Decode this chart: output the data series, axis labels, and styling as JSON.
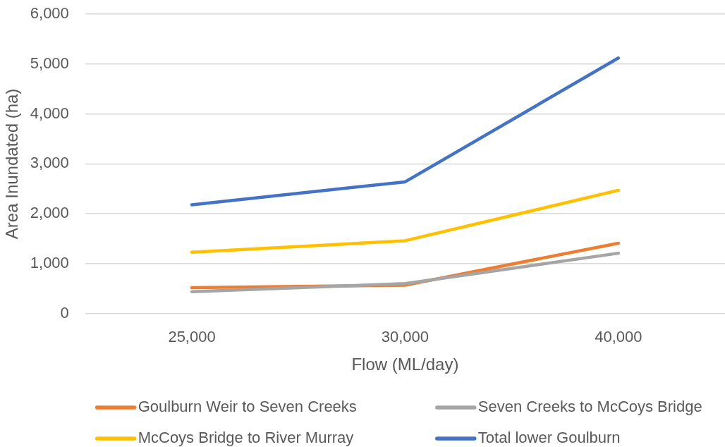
{
  "chart_data": {
    "type": "line",
    "xlabel": "Flow (ML/day)",
    "ylabel": "Area Inundated (ha)",
    "categories": [
      "25,000",
      "30,000",
      "40,000"
    ],
    "series": [
      {
        "name": "Goulburn Weir to Seven Creeks",
        "color": "#ed7d31",
        "values": [
          520,
          570,
          1410
        ]
      },
      {
        "name": "Seven Creeks to McCoys Bridge",
        "color": "#a5a5a5",
        "values": [
          440,
          600,
          1210
        ]
      },
      {
        "name": "McCoys Bridge to River Murray",
        "color": "#ffc000",
        "values": [
          1230,
          1460,
          2470
        ]
      },
      {
        "name": "Total lower Goulburn",
        "color": "#4472c4",
        "values": [
          2180,
          2640,
          5120
        ]
      }
    ],
    "ylim": [
      0,
      6000
    ],
    "yticks": [
      0,
      {
        "value": 1000,
        "label": "1,000"
      },
      {
        "value": 2000,
        "label": "2,000"
      },
      {
        "value": 3000,
        "label": "3,000"
      },
      {
        "value": 4000,
        "label": "4,000"
      },
      {
        "value": 5000,
        "label": "5,000"
      },
      {
        "value": 6000,
        "label": "6,000"
      }
    ],
    "grid": "y",
    "legend": "bottom",
    "marker": "none",
    "line_style": "solid"
  }
}
